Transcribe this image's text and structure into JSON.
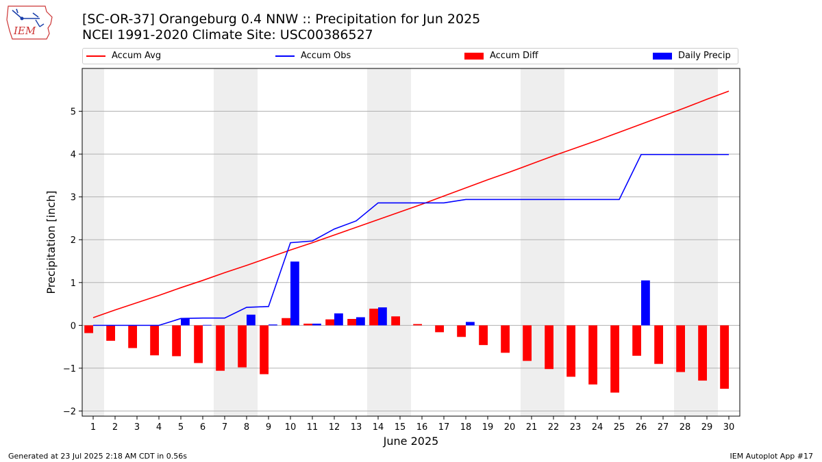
{
  "header": {
    "title_line1": "[SC-OR-37] Orangeburg 0.4 NNW :: Precipitation for Jun 2025",
    "title_line2": "NCEI 1991-2020 Climate Site: USC00386527"
  },
  "logo": {
    "text": "IEM",
    "icon": "iem-iowa-map-logo"
  },
  "footer": {
    "left": "Generated at 23 Jul 2025 2:18 AM CDT in 0.56s",
    "right": "IEM Autoplot App #17"
  },
  "colors": {
    "avg": "#ff0000",
    "obs": "#0000ff",
    "diff": "#ff0000",
    "daily": "#0000ff",
    "shade": "#eeeeee",
    "grid": "#b0b0b0"
  },
  "chart_data": {
    "type": "bar",
    "xlabel": "June 2025",
    "ylabel": "Precipitation [inch]",
    "ylim": [
      -2.12,
      6.0
    ],
    "xlim": [
      0.5,
      30.5
    ],
    "yticks": [
      -2,
      -1,
      0,
      1,
      2,
      3,
      4,
      5
    ],
    "ytick_labels": [
      "−2",
      "−1",
      "0",
      "1",
      "2",
      "3",
      "4",
      "5"
    ],
    "grid": "horizontal",
    "legend_position": "top",
    "days": [
      1,
      2,
      3,
      4,
      5,
      6,
      7,
      8,
      9,
      10,
      11,
      12,
      13,
      14,
      15,
      16,
      17,
      18,
      19,
      20,
      21,
      22,
      23,
      24,
      25,
      26,
      27,
      28,
      29,
      30
    ],
    "weekend_shading": [
      [
        0.5,
        1.5
      ],
      [
        6.5,
        8.5
      ],
      [
        13.5,
        15.5
      ],
      [
        20.5,
        22.5
      ],
      [
        27.5,
        29.5
      ]
    ],
    "series": [
      {
        "name": "Accum Avg",
        "kind": "line",
        "color": "#ff0000",
        "values": [
          0.18,
          0.36,
          0.53,
          0.7,
          0.88,
          1.05,
          1.23,
          1.4,
          1.58,
          1.76,
          1.93,
          2.11,
          2.29,
          2.47,
          2.65,
          2.83,
          3.02,
          3.21,
          3.4,
          3.58,
          3.77,
          3.96,
          4.14,
          4.32,
          4.51,
          4.7,
          4.89,
          5.08,
          5.28,
          5.47
        ]
      },
      {
        "name": "Accum Obs",
        "kind": "line",
        "color": "#0000ff",
        "values": [
          0.0,
          0.0,
          0.0,
          0.0,
          0.16,
          0.17,
          0.17,
          0.42,
          0.44,
          1.93,
          1.97,
          2.25,
          2.44,
          2.86,
          2.86,
          2.86,
          2.86,
          2.94,
          2.94,
          2.94,
          2.94,
          2.94,
          2.94,
          2.94,
          2.94,
          3.99,
          3.99,
          3.99,
          3.99,
          3.99
        ]
      },
      {
        "name": "Accum Diff",
        "kind": "bar",
        "color": "#ff0000",
        "values": [
          -0.18,
          -0.36,
          -0.53,
          -0.7,
          -0.72,
          -0.88,
          -1.06,
          -0.98,
          -1.14,
          0.17,
          0.04,
          0.14,
          0.15,
          0.39,
          0.21,
          0.03,
          -0.16,
          -0.27,
          -0.46,
          -0.64,
          -0.83,
          -1.02,
          -1.2,
          -1.38,
          -1.57,
          -0.71,
          -0.9,
          -1.09,
          -1.29,
          -1.48
        ]
      },
      {
        "name": "Daily Precip",
        "kind": "bar",
        "color": "#0000ff",
        "values": [
          0,
          0,
          0,
          0,
          0.16,
          0.01,
          0,
          0.25,
          0.02,
          1.49,
          0.04,
          0.28,
          0.19,
          0.42,
          0,
          0,
          0,
          0.08,
          0,
          0,
          0,
          0,
          0,
          0,
          0,
          1.05,
          0,
          0,
          0,
          0
        ]
      }
    ]
  }
}
